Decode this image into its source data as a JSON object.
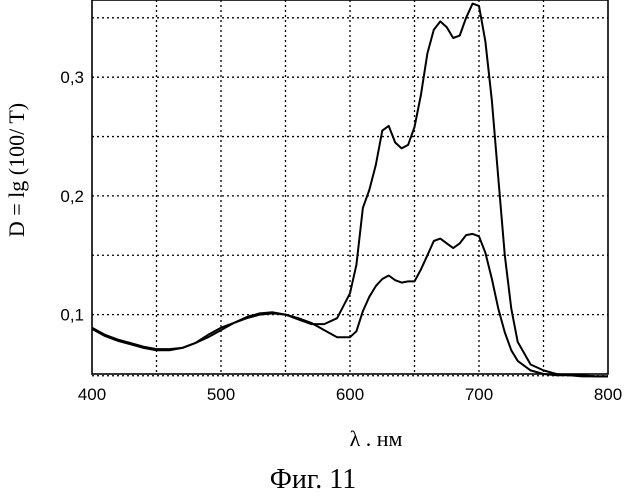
{
  "chart_data": {
    "type": "line",
    "xlabel": "λ . нм",
    "ylabel": "D = lg (100/ T)",
    "caption": "Фиг. 11",
    "xlim": [
      400,
      800
    ],
    "ylim": [
      0.05,
      0.365
    ],
    "grid": true,
    "x_ticks": [
      400,
      500,
      600,
      700,
      800
    ],
    "x_tick_labels": [
      "400",
      "500",
      "600",
      "700",
      "800"
    ],
    "y_ticks": [
      0.1,
      0.2,
      0.3
    ],
    "y_tick_labels": [
      "0,1",
      "0,2",
      "0,3"
    ],
    "series": [
      {
        "x": [
          400,
          410,
          420,
          430,
          440,
          450,
          460,
          470,
          480,
          490,
          500,
          510,
          520,
          530,
          540,
          550,
          560,
          570,
          580,
          590,
          600,
          605,
          610,
          615,
          620,
          625,
          630,
          635,
          640,
          645,
          650,
          655,
          660,
          665,
          670,
          675,
          680,
          685,
          690,
          695,
          700,
          705,
          710,
          715,
          720,
          725,
          730,
          740,
          750,
          760,
          770,
          780,
          790,
          800
        ],
        "y": [
          0.089,
          0.083,
          0.079,
          0.076,
          0.073,
          0.071,
          0.071,
          0.072,
          0.076,
          0.081,
          0.087,
          0.093,
          0.098,
          0.101,
          0.102,
          0.1,
          0.096,
          0.092,
          0.092,
          0.097,
          0.118,
          0.142,
          0.19,
          0.205,
          0.226,
          0.255,
          0.259,
          0.245,
          0.24,
          0.243,
          0.258,
          0.285,
          0.32,
          0.34,
          0.347,
          0.342,
          0.333,
          0.335,
          0.35,
          0.362,
          0.36,
          0.33,
          0.28,
          0.215,
          0.15,
          0.105,
          0.077,
          0.058,
          0.053,
          0.05,
          0.049,
          0.049,
          0.048,
          0.048
        ]
      },
      {
        "x": [
          400,
          410,
          420,
          430,
          440,
          450,
          460,
          470,
          480,
          490,
          500,
          510,
          520,
          530,
          540,
          550,
          560,
          570,
          580,
          590,
          600,
          605,
          610,
          615,
          620,
          625,
          630,
          635,
          640,
          645,
          650,
          655,
          660,
          665,
          670,
          675,
          680,
          685,
          690,
          695,
          700,
          705,
          710,
          715,
          720,
          725,
          730,
          740,
          750,
          760,
          770,
          780,
          790,
          800
        ],
        "y": [
          0.088,
          0.082,
          0.078,
          0.075,
          0.072,
          0.07,
          0.07,
          0.072,
          0.076,
          0.083,
          0.089,
          0.093,
          0.097,
          0.1,
          0.101,
          0.1,
          0.097,
          0.093,
          0.087,
          0.081,
          0.081,
          0.086,
          0.103,
          0.115,
          0.124,
          0.13,
          0.133,
          0.129,
          0.127,
          0.128,
          0.128,
          0.138,
          0.15,
          0.162,
          0.164,
          0.16,
          0.156,
          0.16,
          0.167,
          0.168,
          0.166,
          0.152,
          0.13,
          0.105,
          0.085,
          0.07,
          0.061,
          0.053,
          0.05,
          0.049,
          0.049,
          0.048,
          0.048,
          0.048
        ]
      }
    ]
  }
}
